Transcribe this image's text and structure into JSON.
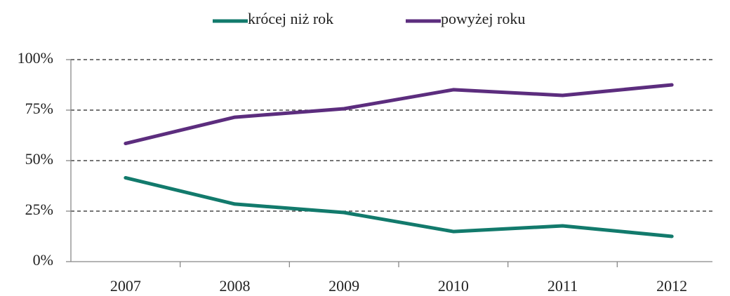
{
  "chart_data": {
    "type": "line",
    "categories": [
      "2007",
      "2008",
      "2009",
      "2010",
      "2011",
      "2012"
    ],
    "series": [
      {
        "name": "krócej niż rok",
        "color": "#127a6c",
        "values": [
          41.5,
          28.5,
          24.3,
          14.9,
          17.7,
          12.5
        ]
      },
      {
        "name": "powyżej roku",
        "color": "#5c2d7e",
        "values": [
          58.5,
          71.5,
          75.7,
          85.1,
          82.3,
          87.5
        ]
      }
    ],
    "ylim": [
      0,
      100
    ],
    "yticks": [
      {
        "value": 0,
        "label": "0%"
      },
      {
        "value": 25,
        "label": "25%"
      },
      {
        "value": 50,
        "label": "50%"
      },
      {
        "value": 75,
        "label": "75%"
      },
      {
        "value": 100,
        "label": "100%"
      }
    ],
    "grid": true,
    "legend": "top"
  }
}
